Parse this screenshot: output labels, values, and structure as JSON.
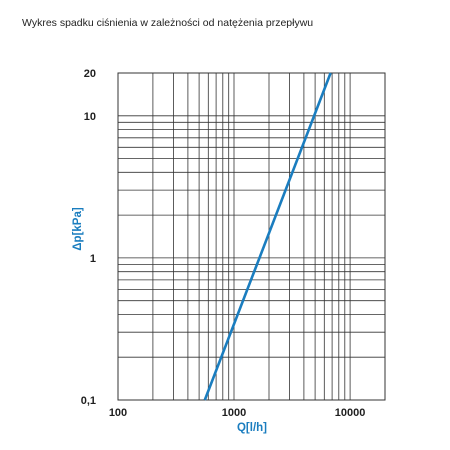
{
  "colors": {
    "series": "#1a7dbf",
    "axis_label": "#1a7dbf",
    "grid": "#333333",
    "background": "#ffffff"
  },
  "chart_data": {
    "type": "line",
    "title": "Wykres spadku ciśnienia w zależności od natężenia przepływu",
    "xlabel": "Q[l/h]",
    "ylabel": "Δp[kPa]",
    "x_scale": "log",
    "y_scale": "log",
    "xlim": [
      100,
      20000
    ],
    "ylim": [
      0.1,
      20
    ],
    "x_ticks": [
      {
        "value": 100,
        "label": "100"
      },
      {
        "value": 1000,
        "label": "1000"
      },
      {
        "value": 10000,
        "label": "10000"
      }
    ],
    "y_ticks": [
      {
        "value": 0.1,
        "label": "0,1"
      },
      {
        "value": 1,
        "label": "1"
      },
      {
        "value": 10,
        "label": "10"
      },
      {
        "value": 20,
        "label": "20"
      }
    ],
    "grid": true,
    "legend": "none",
    "series": [
      {
        "x": [
          560,
          6800
        ],
        "y": [
          0.1,
          20
        ]
      }
    ]
  }
}
